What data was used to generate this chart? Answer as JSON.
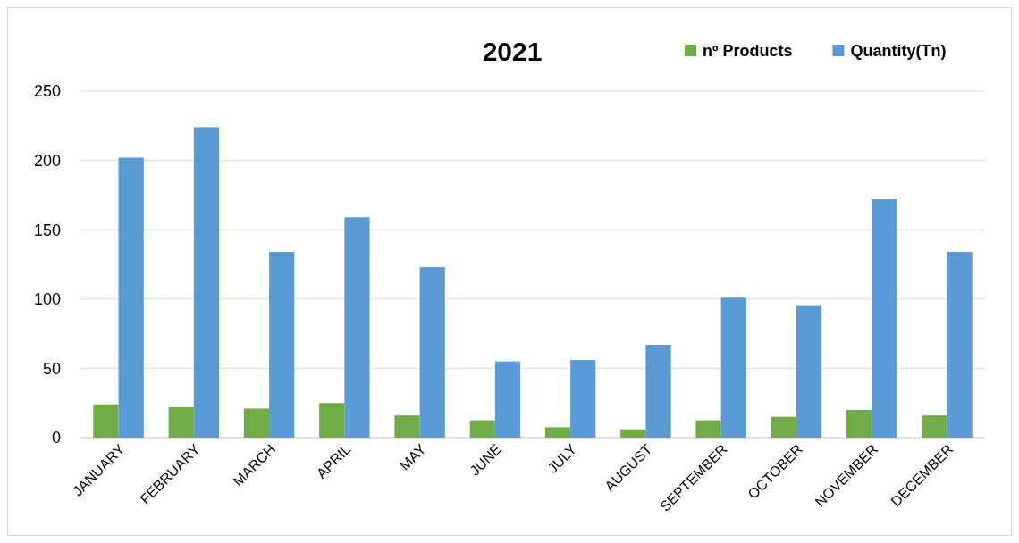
{
  "chart_data": {
    "type": "bar",
    "title": "2021",
    "categories": [
      "JANUARY",
      "FEBRUARY",
      "MARCH",
      "APRIL",
      "MAY",
      "JUNE",
      "JULY",
      "AUGUST",
      "SEPTEMBER",
      "OCTOBER",
      "NOVEMBER",
      "DECEMBER"
    ],
    "series": [
      {
        "name": "nº Products",
        "color": "#70ad47",
        "values": [
          24,
          22,
          21,
          25,
          16,
          12.5,
          7.5,
          6,
          12.5,
          15,
          20,
          16
        ]
      },
      {
        "name": "Quantity(Tn)",
        "color": "#5b9bd5",
        "values": [
          202,
          224,
          134,
          159,
          123,
          55,
          56,
          67,
          101,
          95,
          172,
          134
        ]
      }
    ],
    "ylim": [
      0,
      250
    ],
    "yticks": [
      0,
      50,
      100,
      150,
      200,
      250
    ],
    "grid": "y",
    "legend": "top right"
  }
}
